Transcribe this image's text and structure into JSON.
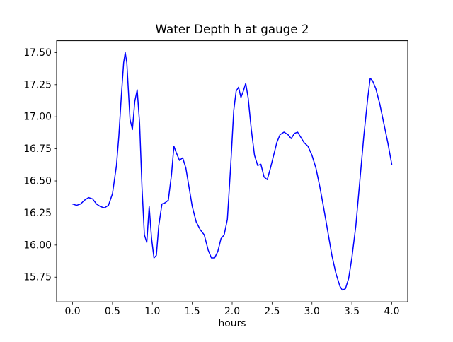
{
  "chart_data": {
    "type": "line",
    "title": "Water Depth h at gauge 2",
    "xlabel": "hours",
    "ylabel": "",
    "line_color": "#0000ff",
    "frame_color": "#000000",
    "grid": false,
    "legend": "none",
    "xlim": [
      -0.2,
      4.2
    ],
    "ylim": [
      15.5575,
      17.5925
    ],
    "x_ticks": [
      0.0,
      0.5,
      1.0,
      1.5,
      2.0,
      2.5,
      3.0,
      3.5,
      4.0
    ],
    "x_tick_labels": [
      "0.0",
      "0.5",
      "1.0",
      "1.5",
      "2.0",
      "2.5",
      "3.0",
      "3.5",
      "4.0"
    ],
    "y_ticks": [
      15.75,
      16.0,
      16.25,
      16.5,
      16.75,
      17.0,
      17.25,
      17.5
    ],
    "y_tick_labels": [
      "15.75",
      "16.00",
      "16.25",
      "16.50",
      "16.75",
      "17.00",
      "17.25",
      "17.50"
    ],
    "series": [
      {
        "name": "water depth h",
        "x": [
          0.0,
          0.05,
          0.1,
          0.15,
          0.2,
          0.25,
          0.3,
          0.35,
          0.4,
          0.45,
          0.5,
          0.55,
          0.58,
          0.61,
          0.64,
          0.66,
          0.68,
          0.7,
          0.72,
          0.75,
          0.78,
          0.81,
          0.84,
          0.87,
          0.9,
          0.93,
          0.96,
          0.99,
          1.02,
          1.05,
          1.08,
          1.12,
          1.16,
          1.2,
          1.24,
          1.27,
          1.3,
          1.34,
          1.38,
          1.42,
          1.46,
          1.5,
          1.55,
          1.6,
          1.65,
          1.7,
          1.74,
          1.78,
          1.82,
          1.86,
          1.9,
          1.94,
          1.98,
          2.02,
          2.05,
          2.08,
          2.11,
          2.14,
          2.17,
          2.2,
          2.24,
          2.28,
          2.32,
          2.36,
          2.4,
          2.44,
          2.48,
          2.52,
          2.56,
          2.6,
          2.65,
          2.7,
          2.74,
          2.78,
          2.82,
          2.86,
          2.9,
          2.95,
          3.0,
          3.05,
          3.1,
          3.15,
          3.2,
          3.25,
          3.3,
          3.35,
          3.38,
          3.42,
          3.46,
          3.5,
          3.55,
          3.6,
          3.65,
          3.7,
          3.73,
          3.76,
          3.8,
          3.85,
          3.9,
          3.95,
          4.0
        ],
        "y": [
          16.32,
          16.31,
          16.32,
          16.35,
          16.37,
          16.36,
          16.32,
          16.3,
          16.29,
          16.31,
          16.4,
          16.62,
          16.85,
          17.15,
          17.42,
          17.5,
          17.42,
          17.2,
          16.98,
          16.9,
          17.12,
          17.21,
          16.95,
          16.45,
          16.08,
          16.02,
          16.3,
          16.05,
          15.9,
          15.92,
          16.15,
          16.32,
          16.33,
          16.35,
          16.55,
          16.77,
          16.72,
          16.66,
          16.68,
          16.6,
          16.45,
          16.3,
          16.18,
          16.12,
          16.08,
          15.96,
          15.9,
          15.9,
          15.95,
          16.05,
          16.08,
          16.2,
          16.6,
          17.05,
          17.2,
          17.23,
          17.15,
          17.2,
          17.26,
          17.15,
          16.9,
          16.7,
          16.62,
          16.63,
          16.53,
          16.51,
          16.6,
          16.7,
          16.8,
          16.86,
          16.88,
          16.86,
          16.83,
          16.87,
          16.88,
          16.84,
          16.8,
          16.77,
          16.7,
          16.6,
          16.45,
          16.28,
          16.1,
          15.92,
          15.78,
          15.68,
          15.65,
          15.66,
          15.74,
          15.9,
          16.15,
          16.5,
          16.85,
          17.15,
          17.3,
          17.28,
          17.22,
          17.1,
          16.95,
          16.8,
          16.63
        ]
      }
    ]
  }
}
